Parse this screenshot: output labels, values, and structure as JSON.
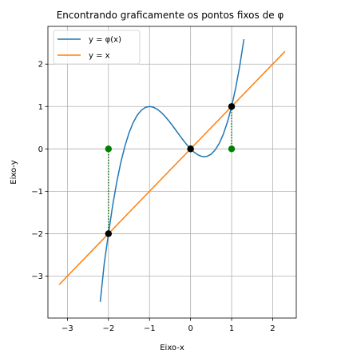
{
  "chart_data": {
    "type": "line",
    "title": "Encontrando graficamente os pontos fixos de φ",
    "xlabel": "Eixo-x",
    "ylabel": "Eixo-y",
    "xlim": [
      -3.475,
      2.575
    ],
    "ylim": [
      -3.99,
      2.89
    ],
    "xticks": [
      -3,
      -2,
      -1,
      0,
      1,
      2
    ],
    "xtick_labels": [
      "−3",
      "−2",
      "−1",
      "0",
      "1",
      "2"
    ],
    "yticks": [
      -3,
      -2,
      -1,
      0,
      1,
      2
    ],
    "ytick_labels": [
      "−3",
      "−2",
      "−1",
      "0",
      "1",
      "2"
    ],
    "grid": true,
    "legend_position": "upper-left",
    "series": [
      {
        "name": "y = φ(x)",
        "color": "#1f77b4",
        "x": [
          -2.2,
          -2.1,
          -2.0,
          -1.9,
          -1.8,
          -1.7,
          -1.6,
          -1.5,
          -1.4,
          -1.3,
          -1.2,
          -1.1,
          -1.0,
          -0.9,
          -0.8,
          -0.7,
          -0.6,
          -0.5,
          -0.4,
          -0.3,
          -0.2,
          -0.1,
          0.0,
          0.1,
          0.2,
          0.3,
          0.333,
          0.4,
          0.5,
          0.6,
          0.7,
          0.8,
          0.9,
          1.0,
          1.1,
          1.2,
          1.3
        ],
        "y": [
          -3.608,
          -2.681,
          -2.0,
          -1.349,
          -0.792,
          -0.323,
          0.064,
          0.375,
          0.616,
          0.793,
          0.912,
          0.979,
          1.0,
          0.981,
          0.928,
          0.847,
          0.744,
          0.625,
          0.496,
          0.363,
          0.232,
          0.109,
          0.0,
          -0.089,
          -0.152,
          -0.183,
          -0.185,
          -0.176,
          -0.125,
          -0.024,
          0.133,
          0.352,
          0.639,
          1.0,
          1.441,
          1.968,
          2.587
        ]
      },
      {
        "name": "y = x",
        "color": "#ff7f0e",
        "x": [
          -3.2,
          2.3
        ],
        "y": [
          -3.2,
          2.3
        ]
      }
    ],
    "fixed_points": [
      {
        "x": -2,
        "y": -2
      },
      {
        "x": 0,
        "y": 0
      },
      {
        "x": 1,
        "y": 1
      }
    ],
    "fixed_point_color": "#000000",
    "x_axis_markers": [
      {
        "x": -2,
        "y": 0
      },
      {
        "x": 0,
        "y": 0
      },
      {
        "x": 1,
        "y": 0
      }
    ],
    "x_axis_marker_color": "#008000",
    "projection_color": "#006400"
  }
}
